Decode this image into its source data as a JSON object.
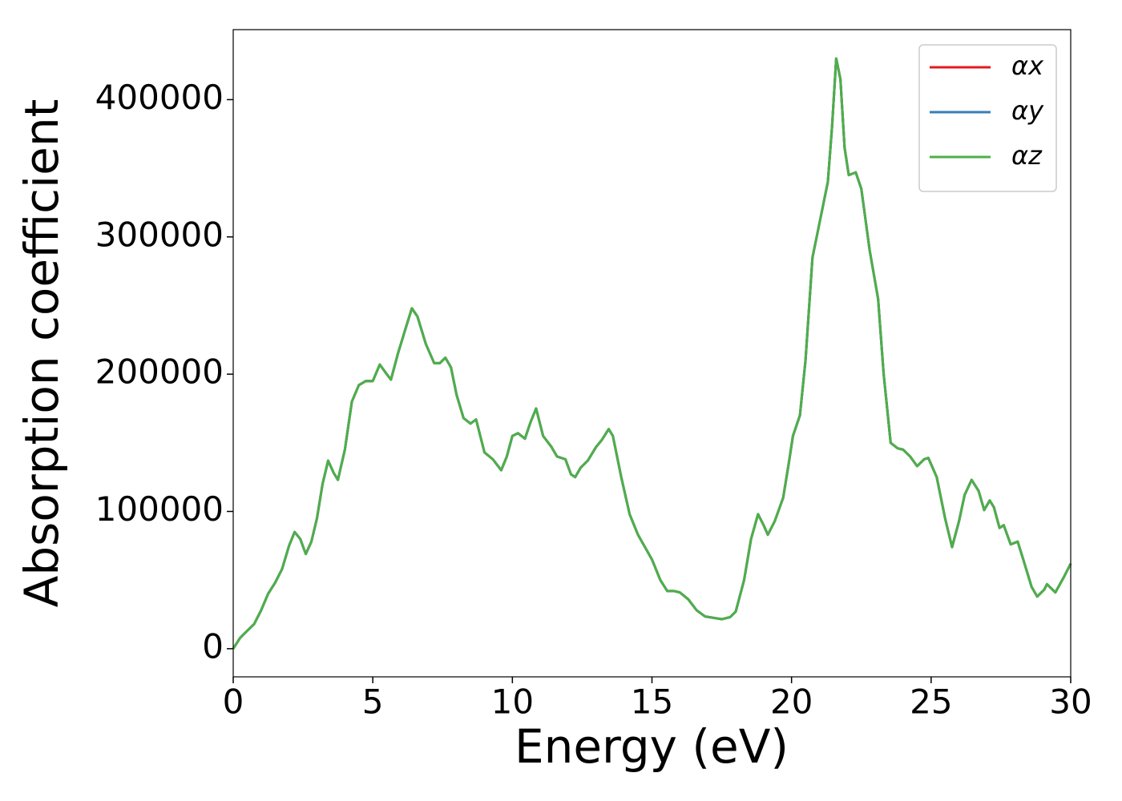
{
  "chart_data": {
    "type": "line",
    "xlabel": "Energy (eV)",
    "ylabel": "Absorption coefficient",
    "x": [
      0,
      0.25,
      0.5,
      0.75,
      1.0,
      1.25,
      1.5,
      1.75,
      2.0,
      2.2,
      2.4,
      2.6,
      2.8,
      3.0,
      3.2,
      3.4,
      3.6,
      3.75,
      4.0,
      4.25,
      4.5,
      4.75,
      5.0,
      5.25,
      5.5,
      5.65,
      5.9,
      6.2,
      6.4,
      6.6,
      6.9,
      7.2,
      7.4,
      7.6,
      7.8,
      8.0,
      8.25,
      8.5,
      8.7,
      9.0,
      9.3,
      9.6,
      9.8,
      10.0,
      10.2,
      10.45,
      10.65,
      10.85,
      11.1,
      11.4,
      11.6,
      11.9,
      12.1,
      12.25,
      12.45,
      12.7,
      13.0,
      13.2,
      13.45,
      13.6,
      13.9,
      14.2,
      14.5,
      14.75,
      15.0,
      15.3,
      15.55,
      15.8,
      16.0,
      16.3,
      16.6,
      16.9,
      17.2,
      17.5,
      17.8,
      18.0,
      18.3,
      18.55,
      18.8,
      19.0,
      19.15,
      19.4,
      19.7,
      19.9,
      20.05,
      20.3,
      20.5,
      20.75,
      21.0,
      21.3,
      21.45,
      21.6,
      21.75,
      21.9,
      22.05,
      22.3,
      22.5,
      22.8,
      23.1,
      23.3,
      23.55,
      23.8,
      24.0,
      24.25,
      24.5,
      24.75,
      24.9,
      25.2,
      25.5,
      25.75,
      26.0,
      26.2,
      26.45,
      26.7,
      26.9,
      27.1,
      27.25,
      27.45,
      27.6,
      27.85,
      28.1,
      28.3,
      28.6,
      28.8,
      29.05,
      29.15,
      29.45,
      29.75,
      30.0
    ],
    "series": [
      {
        "name": "αx",
        "color": "#e41a1c",
        "values": [
          0,
          8000,
          13000,
          18000,
          28000,
          40000,
          48000,
          58000,
          75000,
          85000,
          80000,
          69000,
          78000,
          95000,
          120000,
          137000,
          128000,
          123000,
          145000,
          180000,
          192000,
          195000,
          195000,
          207000,
          200000,
          196000,
          215000,
          235000,
          248000,
          242000,
          222000,
          208000,
          208000,
          212000,
          205000,
          185000,
          168000,
          164000,
          167000,
          143000,
          138000,
          130000,
          140000,
          155000,
          157000,
          153000,
          165000,
          175000,
          155000,
          147000,
          140000,
          138000,
          127000,
          125000,
          132000,
          137000,
          147000,
          152000,
          160000,
          155000,
          125000,
          98000,
          83000,
          74000,
          65000,
          50000,
          42000,
          42000,
          41000,
          36000,
          28000,
          23500,
          22500,
          21500,
          23000,
          27000,
          50000,
          80000,
          98000,
          90000,
          83000,
          93000,
          110000,
          135000,
          155000,
          170000,
          210000,
          285000,
          310000,
          340000,
          380000,
          430000,
          415000,
          365000,
          345000,
          347000,
          335000,
          290000,
          255000,
          200000,
          150000,
          146000,
          145000,
          140000,
          133000,
          138000,
          139000,
          125000,
          95000,
          74000,
          93000,
          112000,
          123000,
          115000,
          101000,
          108000,
          103000,
          88000,
          90000,
          76000,
          78000,
          65000,
          45000,
          38000,
          43000,
          47000,
          41000,
          52000,
          62000
        ]
      },
      {
        "name": "αy",
        "color": "#377eb8",
        "values": [
          0,
          8000,
          13000,
          18000,
          28000,
          40000,
          48000,
          58000,
          75000,
          85000,
          80000,
          69000,
          78000,
          95000,
          120000,
          137000,
          128000,
          123000,
          145000,
          180000,
          192000,
          195000,
          195000,
          207000,
          200000,
          196000,
          215000,
          235000,
          248000,
          242000,
          222000,
          208000,
          208000,
          212000,
          205000,
          185000,
          168000,
          164000,
          167000,
          143000,
          138000,
          130000,
          140000,
          155000,
          157000,
          153000,
          165000,
          175000,
          155000,
          147000,
          140000,
          138000,
          127000,
          125000,
          132000,
          137000,
          147000,
          152000,
          160000,
          155000,
          125000,
          98000,
          83000,
          74000,
          65000,
          50000,
          42000,
          42000,
          41000,
          36000,
          28000,
          23500,
          22500,
          21500,
          23000,
          27000,
          50000,
          80000,
          98000,
          90000,
          83000,
          93000,
          110000,
          135000,
          155000,
          170000,
          210000,
          285000,
          310000,
          340000,
          380000,
          430000,
          415000,
          365000,
          345000,
          347000,
          335000,
          290000,
          255000,
          200000,
          150000,
          146000,
          145000,
          140000,
          133000,
          138000,
          139000,
          125000,
          95000,
          74000,
          93000,
          112000,
          123000,
          115000,
          101000,
          108000,
          103000,
          88000,
          90000,
          76000,
          78000,
          65000,
          45000,
          38000,
          43000,
          47000,
          41000,
          52000,
          62000
        ]
      },
      {
        "name": "αz",
        "color": "#4daf4a",
        "values": [
          0,
          8000,
          13000,
          18000,
          28000,
          40000,
          48000,
          58000,
          75000,
          85000,
          80000,
          69000,
          78000,
          95000,
          120000,
          137000,
          128000,
          123000,
          145000,
          180000,
          192000,
          195000,
          195000,
          207000,
          200000,
          196000,
          215000,
          235000,
          248000,
          242000,
          222000,
          208000,
          208000,
          212000,
          205000,
          185000,
          168000,
          164000,
          167000,
          143000,
          138000,
          130000,
          140000,
          155000,
          157000,
          153000,
          165000,
          175000,
          155000,
          147000,
          140000,
          138000,
          127000,
          125000,
          132000,
          137000,
          147000,
          152000,
          160000,
          155000,
          125000,
          98000,
          83000,
          74000,
          65000,
          50000,
          42000,
          42000,
          41000,
          36000,
          28000,
          23500,
          22500,
          21500,
          23000,
          27000,
          50000,
          80000,
          98000,
          90000,
          83000,
          93000,
          110000,
          135000,
          155000,
          170000,
          210000,
          285000,
          310000,
          340000,
          380000,
          430000,
          415000,
          365000,
          345000,
          347000,
          335000,
          290000,
          255000,
          200000,
          150000,
          146000,
          145000,
          140000,
          133000,
          138000,
          139000,
          125000,
          95000,
          74000,
          93000,
          112000,
          123000,
          115000,
          101000,
          108000,
          103000,
          88000,
          90000,
          76000,
          78000,
          65000,
          45000,
          38000,
          43000,
          47000,
          41000,
          52000,
          62000
        ]
      }
    ],
    "xlim": [
      0,
      30
    ],
    "xticks": [
      0,
      5,
      10,
      15,
      20,
      25,
      30
    ],
    "ylim": [
      -20500,
      451000
    ],
    "yticks": [
      0,
      100000,
      200000,
      300000,
      400000
    ],
    "legend": "upper right",
    "grid": false
  }
}
